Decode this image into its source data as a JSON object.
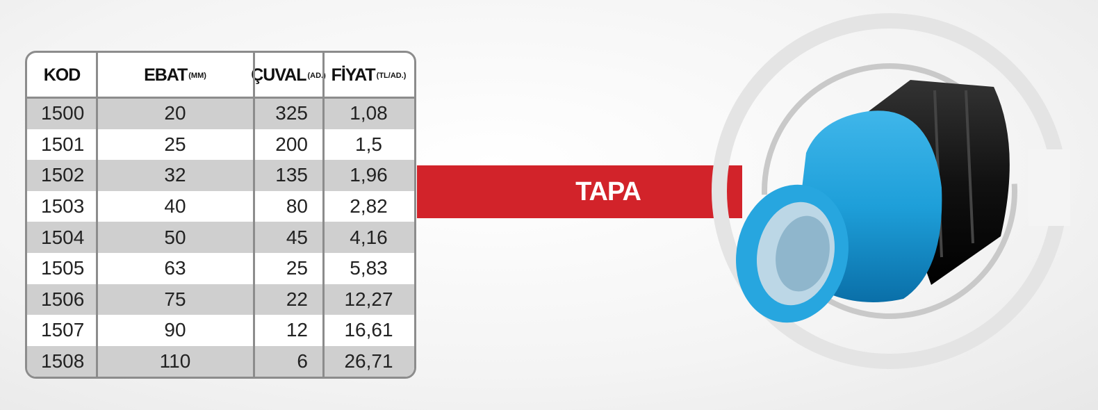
{
  "table": {
    "columns": [
      {
        "label": "KOD"
      },
      {
        "label": "EBAT",
        "unit": "(MM)"
      },
      {
        "label": "ÇUVAL",
        "unit": "(AD.)"
      },
      {
        "label": "FİYAT",
        "unit": "(TL/AD.)"
      }
    ],
    "rows": [
      [
        "1500",
        "20",
        "325",
        "1,08"
      ],
      [
        "1501",
        "25",
        "200",
        "1,5"
      ],
      [
        "1502",
        "32",
        "135",
        "1,96"
      ],
      [
        "1503",
        "40",
        "80",
        "2,82"
      ],
      [
        "1504",
        "50",
        "45",
        "4,16"
      ],
      [
        "1505",
        "63",
        "25",
        "5,83"
      ],
      [
        "1506",
        "75",
        "22",
        "12,27"
      ],
      [
        "1507",
        "90",
        "12",
        "16,61"
      ],
      [
        "1508",
        "110",
        "6",
        "26,71"
      ]
    ]
  },
  "banner": {
    "label": "TAPA"
  }
}
